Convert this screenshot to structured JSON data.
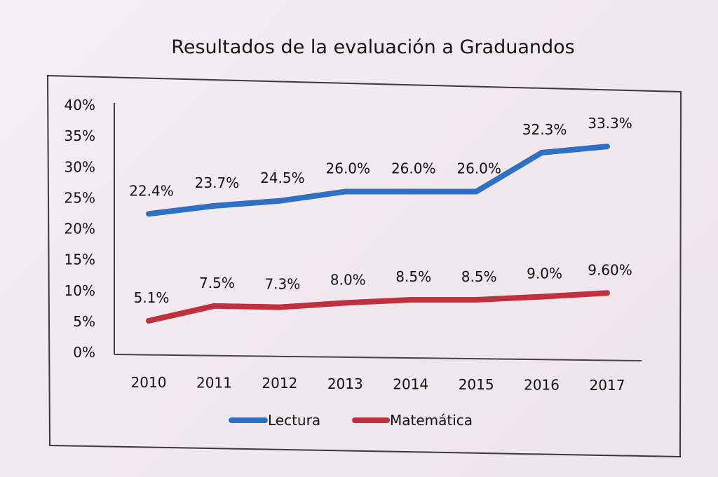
{
  "chart_data": {
    "type": "line",
    "title": "Resultados de la evaluación a Graduandos",
    "xlabel": "",
    "ylabel": "",
    "categories": [
      "2010",
      "2011",
      "2012",
      "2013",
      "2014",
      "2015",
      "2016",
      "2017"
    ],
    "ylim": [
      0,
      40
    ],
    "yticks": [
      "0%",
      "5%",
      "10%",
      "15%",
      "20%",
      "25%",
      "30%",
      "35%",
      "40%"
    ],
    "grid": false,
    "legend": "bottom",
    "series": [
      {
        "name": "Lectura",
        "color": "#2f6fc4",
        "values": [
          22.4,
          23.7,
          24.5,
          26.0,
          26.0,
          26.0,
          32.3,
          33.3
        ],
        "labels": [
          "22.4%",
          "23.7%",
          "24.5%",
          "26.0%",
          "26.0%",
          "26.0%",
          "32.3%",
          "33.3%"
        ]
      },
      {
        "name": "Matemática",
        "color": "#c0313f",
        "values": [
          5.1,
          7.5,
          7.3,
          8.0,
          8.5,
          8.5,
          9.0,
          9.6
        ],
        "labels": [
          "5.1%",
          "7.5%",
          "7.3%",
          "8.0%",
          "8.5%",
          "8.5%",
          "9.0%",
          "9.60%"
        ]
      }
    ]
  }
}
